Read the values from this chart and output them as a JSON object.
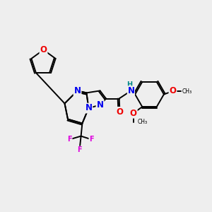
{
  "bg_color": "#eeeeee",
  "bond_color": "#000000",
  "bond_width": 1.4,
  "atom_colors": {
    "N": "#0000ee",
    "O": "#ee0000",
    "F": "#dd00dd",
    "H": "#008888"
  },
  "font_size": 8.5,
  "font_size_small": 7.0
}
